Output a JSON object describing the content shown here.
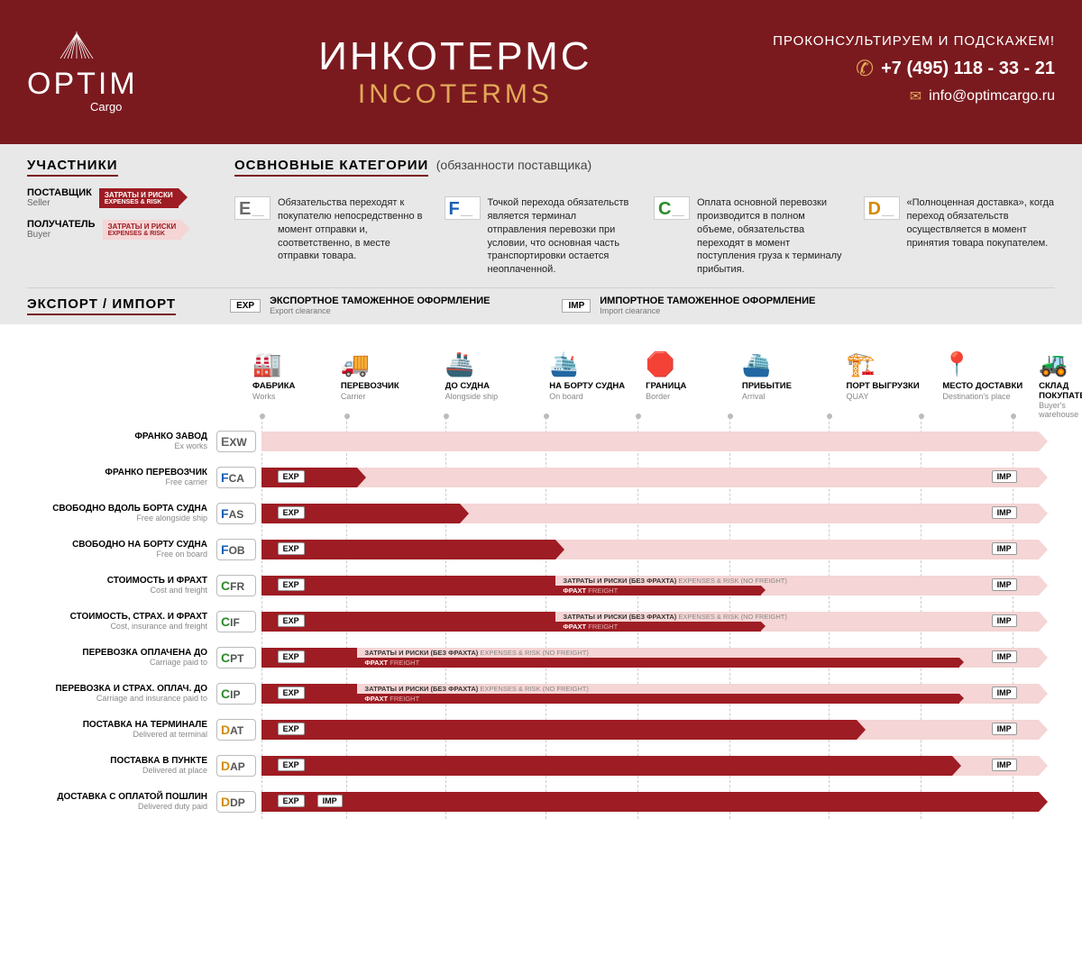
{
  "colors": {
    "primary": "#7a1a1f",
    "seller": "#9e1c23",
    "buyer": "#f5d5d5",
    "accent": "#e3a857",
    "E": "#6b6b6b",
    "F": "#1a5fb4",
    "C": "#2a8a2a",
    "D": "#d48b00"
  },
  "header": {
    "logo": {
      "name": "OPTIM",
      "sub": "Cargo"
    },
    "title_ru": "ИНКОТЕРМС",
    "title_en": "INCOTERMS",
    "contact": {
      "tagline": "ПРОКОНСУЛЬТИРУЕМ И ПОДСКАЖЕМ!",
      "phone": "+7 (495) 118 - 33 - 21",
      "email": "info@optimcargo.ru"
    }
  },
  "participants": {
    "title": "УЧАСТНИКИ",
    "seller": {
      "ru": "ПОСТАВЩИК",
      "en": "Seller",
      "tag_ru": "ЗАТРАТЫ И РИСКИ",
      "tag_en": "EXPENSES & RISK"
    },
    "buyer": {
      "ru": "ПОЛУЧАТЕЛЬ",
      "en": "Buyer",
      "tag_ru": "ЗАТРАТЫ И РИСКИ",
      "tag_en": "EXPENSES & RISK"
    }
  },
  "categories": {
    "title": "ОСВНОВНЫЕ КАТЕГОРИИ",
    "subtitle": "(обязанности поставщика)",
    "items": [
      {
        "letter": "E",
        "color": "#6b6b6b",
        "desc": "Обязательства переходят к покупателю непосредственно в момент отправки и, соответственно, в месте отправки товара."
      },
      {
        "letter": "F",
        "color": "#1a5fb4",
        "desc": "Точкой перехода обязательств является терминал отправления перевозки при условии, что основная часть транспортировки остается неоплаченной."
      },
      {
        "letter": "C",
        "color": "#2a8a2a",
        "desc": "Оплата основной перевозки производится в полном объеме, обязательства переходят в момент поступления груза к терминалу прибытия."
      },
      {
        "letter": "D",
        "color": "#d48b00",
        "desc": "«Полноценная доставка», когда переход обязательств осуществляется в момент принятия товара покупателем."
      }
    ]
  },
  "expimp": {
    "title": "ЭКСПОРТ / ИМПОРТ",
    "exp": {
      "tag": "EXP",
      "ru": "ЭКСПОРТНОЕ ТАМОЖЕННОЕ ОФОРМЛЕНИЕ",
      "en": "Export clearance"
    },
    "imp": {
      "tag": "IMP",
      "ru": "ИМПОРТНОЕ ТАМОЖЕННОЕ ОФОРМЛЕНИЕ",
      "en": "Import clearance"
    }
  },
  "notes": {
    "risk_ru": "ЗАТРАТЫ И РИСКИ (БЕЗ ФРАХТА)",
    "risk_en": "EXPENSES & RISK (NO FREIGHT)",
    "freight_ru": "ФРАХТ",
    "freight_en": "FREIGHT"
  },
  "stages": [
    {
      "ru": "ФАБРИКА",
      "en": "Works",
      "icon": "🏭",
      "pct": 0
    },
    {
      "ru": "ПЕРЕВОЗЧИК",
      "en": "Carrier",
      "icon": "🚚",
      "pct": 11
    },
    {
      "ru": "ДО СУДНА",
      "en": "Alongside ship",
      "icon": "🚢",
      "pct": 24
    },
    {
      "ru": "НА БОРТУ СУДНА",
      "en": "On board",
      "icon": "🛳️",
      "pct": 37
    },
    {
      "ru": "ГРАНИЦА",
      "en": "Border",
      "icon": "🛑",
      "pct": 49
    },
    {
      "ru": "ПРИБЫТИЕ",
      "en": "Arrival",
      "icon": "⛴️",
      "pct": 61
    },
    {
      "ru": "ПОРТ ВЫГРУЗКИ",
      "en": "QUAY",
      "icon": "🏗️",
      "pct": 74
    },
    {
      "ru": "МЕСТО ДОСТАВКИ",
      "en": "Destination's place",
      "icon": "📍",
      "pct": 86
    },
    {
      "ru": "СКЛАД ПОКУПАТЕЛЯ",
      "en": "Buyer's warehouse",
      "icon": "🚜",
      "pct": 98
    }
  ],
  "terms": [
    {
      "code": "EXW",
      "letter": "E",
      "ru": "ФРАНКО ЗАВОД",
      "en": "Ex works",
      "seller": 0,
      "buyer_from": 0,
      "exp": null,
      "imp": null,
      "split": false
    },
    {
      "code": "FCA",
      "letter": "F",
      "ru": "ФРАНКО ПЕРЕВОЗЧИК",
      "en": "Free carrier",
      "seller": 12,
      "buyer_from": 12,
      "exp": 2,
      "imp": 92,
      "split": false
    },
    {
      "code": "FAS",
      "letter": "F",
      "ru": "СВОБОДНО ВДОЛЬ БОРТА СУДНА",
      "en": "Free alongside ship",
      "seller": 25,
      "buyer_from": 25,
      "exp": 2,
      "imp": 92,
      "split": false
    },
    {
      "code": "FOB",
      "letter": "F",
      "ru": "СВОБОДНО НА БОРТУ СУДНА",
      "en": "Free on board",
      "seller": 37,
      "buyer_from": 37,
      "exp": 2,
      "imp": 92,
      "split": false
    },
    {
      "code": "CFR",
      "letter": "C",
      "ru": "СТОИМОСТЬ И ФРАХТ",
      "en": "Cost and freight",
      "seller": 37,
      "buyer_from": 63,
      "exp": 2,
      "imp": 92,
      "split": true,
      "split_from": 37,
      "freight_to": 63
    },
    {
      "code": "CIF",
      "letter": "C",
      "ru": "СТОИМОСТЬ, СТРАХ. И ФРАХТ",
      "en": "Cost, insurance and freight",
      "seller": 37,
      "buyer_from": 63,
      "exp": 2,
      "imp": 92,
      "split": true,
      "split_from": 37,
      "freight_to": 63
    },
    {
      "code": "CPT",
      "letter": "C",
      "ru": "ПЕРЕВОЗКА ОПЛАЧЕНА ДО",
      "en": "Carriage paid to",
      "seller": 12,
      "buyer_from": 88,
      "exp": 2,
      "imp": 92,
      "split": true,
      "split_from": 12,
      "freight_to": 88
    },
    {
      "code": "CIP",
      "letter": "C",
      "ru": "ПЕРЕВОЗКА И СТРАХ. ОПЛАЧ. ДО",
      "en": "Carriage and insurance paid to",
      "seller": 12,
      "buyer_from": 88,
      "exp": 2,
      "imp": 92,
      "split": true,
      "split_from": 12,
      "freight_to": 88
    },
    {
      "code": "DAT",
      "letter": "D",
      "ru": "ПОСТАВКА НА ТЕРМИНАЛЕ",
      "en": "Delivered at terminal",
      "seller": 75,
      "buyer_from": 75,
      "exp": 2,
      "imp": 92,
      "split": false
    },
    {
      "code": "DAP",
      "letter": "D",
      "ru": "ПОСТАВКА В ПУНКТЕ",
      "en": "Delivered at place",
      "seller": 87,
      "buyer_from": 87,
      "exp": 2,
      "imp": 92,
      "split": false
    },
    {
      "code": "DDP",
      "letter": "D",
      "ru": "ДОСТАВКА С ОПЛАТОЙ ПОШЛИН",
      "en": "Delivered duty paid",
      "seller": 98,
      "buyer_from": 98,
      "exp": 2,
      "imp": 7,
      "split": false
    }
  ]
}
